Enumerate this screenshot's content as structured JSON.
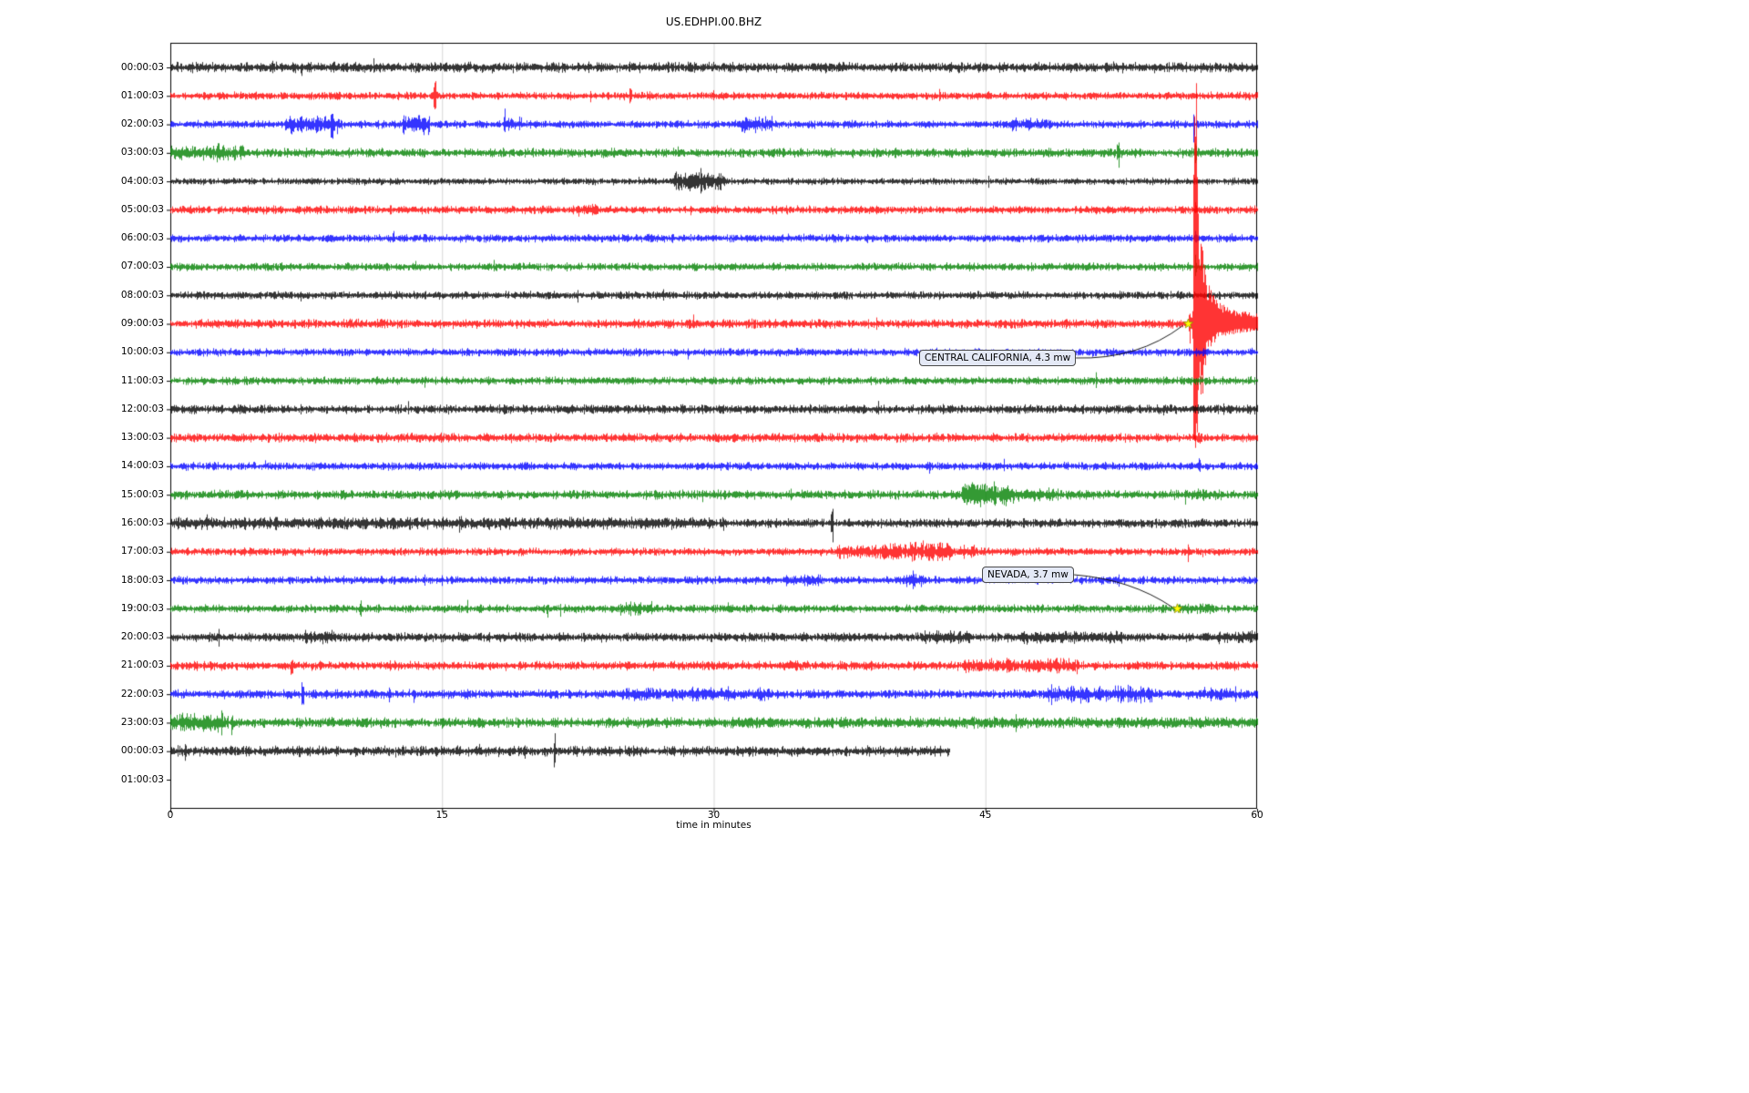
{
  "chart_data": {
    "type": "line",
    "subtype": "seismic-helicorder-dayplot",
    "title": "US.EDHPI.00.BHZ",
    "xlabel": "time in minutes",
    "xlim": [
      0,
      60
    ],
    "xticks": [
      "0",
      "15",
      "30",
      "45",
      "60"
    ],
    "xtick_values": [
      0,
      15,
      30,
      45,
      60
    ],
    "grid": "vertical-only",
    "colors": {
      "trace_cycle": [
        "#000000",
        "#ff0000",
        "#0000ff",
        "#008000"
      ],
      "grid": "#d3d3d3",
      "spine": "#000000",
      "annotation_fill": "#e4e9f6",
      "event_marker": "#ffff00",
      "event_marker_edge": "#8a8a00"
    },
    "rows": [
      {
        "label": "00:00:03",
        "color": "#000000",
        "amp": 4.5,
        "spikes": [
          [
            5.6,
            10
          ],
          [
            9.0,
            8
          ]
        ]
      },
      {
        "label": "01:00:03",
        "color": "#ff0000",
        "amp": 3.5,
        "spikes": [
          [
            14.6,
            15
          ],
          [
            25.4,
            9
          ]
        ]
      },
      {
        "label": "02:00:03",
        "color": "#0000ff",
        "amp": 3.5,
        "bursts": [
          [
            6.3,
            9.5,
            8
          ],
          [
            12.8,
            14.3,
            9
          ],
          [
            18.4,
            19.4,
            7
          ],
          [
            31.4,
            33.2,
            7
          ],
          [
            46.3,
            48.6,
            6
          ]
        ],
        "spikes": [
          [
            8.9,
            26
          ],
          [
            12.9,
            12
          ],
          [
            56.5,
            18
          ]
        ]
      },
      {
        "label": "03:00:03",
        "color": "#008000",
        "amp": 4,
        "bursts": [
          [
            0,
            4.2,
            7
          ]
        ],
        "spikes": [
          [
            2.6,
            10
          ],
          [
            52.3,
            13
          ],
          [
            56.6,
            20
          ]
        ]
      },
      {
        "label": "04:00:03",
        "color": "#000000",
        "amp": 3,
        "bursts": [
          [
            27.8,
            30.6,
            9
          ]
        ],
        "spikes": [
          [
            28.6,
            17
          ],
          [
            29.3,
            14
          ]
        ]
      },
      {
        "label": "05:00:03",
        "color": "#ff0000",
        "amp": 3.5,
        "bursts": [
          [
            22.4,
            23.6,
            6
          ]
        ],
        "spikes": [
          [
            56.6,
            9
          ]
        ]
      },
      {
        "label": "06:00:03",
        "color": "#0000ff",
        "amp": 3.5,
        "spikes": [
          [
            12.3,
            8
          ],
          [
            56.6,
            9
          ]
        ]
      },
      {
        "label": "07:00:03",
        "color": "#008000",
        "amp": 3.5,
        "spikes": [
          [
            56.6,
            11
          ]
        ]
      },
      {
        "label": "08:00:03",
        "color": "#000000",
        "amp": 3.5,
        "spikes": []
      },
      {
        "label": "09:00:03",
        "color": "#ff0000",
        "amp": 4,
        "event": {
          "t_start": 56.2,
          "t_main": 56.45,
          "peak_amp": 250
        }
      },
      {
        "label": "10:00:03",
        "color": "#0000ff",
        "amp": 3.5,
        "spikes": []
      },
      {
        "label": "11:00:03",
        "color": "#008000",
        "amp": 3.5,
        "spikes": []
      },
      {
        "label": "12:00:03",
        "color": "#000000",
        "amp": 4,
        "spikes": []
      },
      {
        "label": "13:00:03",
        "color": "#ff0000",
        "amp": 4,
        "spikes": [
          [
            56.8,
            9
          ]
        ]
      },
      {
        "label": "14:00:03",
        "color": "#0000ff",
        "amp": 3.5,
        "spikes": [
          [
            56.8,
            8
          ]
        ]
      },
      {
        "label": "15:00:03",
        "color": "#008000",
        "amp": 4,
        "bursts": [
          [
            43.7,
            46.6,
            11
          ],
          [
            46.6,
            49,
            6
          ],
          [
            56,
            58,
            5
          ]
        ],
        "spikes": [
          [
            44.2,
            16
          ],
          [
            45.0,
            14
          ]
        ]
      },
      {
        "label": "16:00:03",
        "color": "#000000",
        "amp": 4,
        "bursts": [
          [
            0,
            30,
            5.5
          ]
        ],
        "spikes": [
          [
            2.0,
            8
          ],
          [
            5.9,
            10
          ],
          [
            16.0,
            9
          ],
          [
            30.5,
            9
          ],
          [
            36.5,
            20
          ]
        ]
      },
      {
        "label": "17:00:03",
        "color": "#ff0000",
        "amp": 3.5,
        "bursts": [
          [
            36.8,
            39.5,
            7
          ],
          [
            39.5,
            43.2,
            9
          ],
          [
            43.5,
            44.6,
            6
          ]
        ],
        "spikes": [
          [
            42.0,
            13
          ],
          [
            56.2,
            11
          ]
        ]
      },
      {
        "label": "18:00:03",
        "color": "#0000ff",
        "amp": 3.5,
        "bursts": [
          [
            33.8,
            36,
            5
          ],
          [
            40.4,
            41.6,
            6
          ]
        ],
        "spikes": [
          [
            41.0,
            10
          ]
        ]
      },
      {
        "label": "19:00:03",
        "color": "#008000",
        "amp": 3.5,
        "bursts": [
          [
            24.8,
            26.6,
            6
          ],
          [
            55.6,
            57.6,
            5
          ]
        ],
        "spikes": [
          [
            10.5,
            11
          ],
          [
            20.8,
            9
          ],
          [
            25.6,
            11
          ],
          [
            30.8,
            8
          ]
        ]
      },
      {
        "label": "20:00:03",
        "color": "#000000",
        "amp": 4,
        "bursts": [
          [
            7.4,
            9.1,
            6
          ],
          [
            41.4,
            44.2,
            6
          ],
          [
            46.8,
            52.6,
            6
          ],
          [
            57.8,
            60,
            6
          ]
        ]
      },
      {
        "label": "21:00:03",
        "color": "#ff0000",
        "amp": 4,
        "bursts": [
          [
            33.8,
            35.2,
            5
          ],
          [
            43.8,
            50.2,
            7
          ]
        ],
        "spikes": [
          [
            6.7,
            9
          ]
        ]
      },
      {
        "label": "22:00:03",
        "color": "#0000ff",
        "amp": 4,
        "bursts": [
          [
            24.8,
            33.2,
            6
          ],
          [
            48.4,
            54.2,
            8
          ],
          [
            56.8,
            58.6,
            6
          ]
        ],
        "spikes": [
          [
            7.3,
            13
          ],
          [
            54.0,
            11
          ]
        ]
      },
      {
        "label": "23:00:03",
        "color": "#008000",
        "amp": 4.5,
        "bursts": [
          [
            0,
            3.2,
            9
          ],
          [
            30,
            60,
            5
          ]
        ],
        "spikes": [
          [
            2.8,
            13
          ],
          [
            3.4,
            11
          ]
        ]
      },
      {
        "label": "00:00:03",
        "color": "#000000",
        "amp": 4.5,
        "end_min": 43.0,
        "spikes": [
          [
            21.2,
            18
          ]
        ]
      },
      {
        "label": "01:00:03",
        "color": "#000000",
        "amp": 0,
        "no_data": true
      }
    ],
    "events": [
      {
        "label": "CENTRAL CALIFORNIA, 4.3 mw",
        "row": 9,
        "t_minutes": 56.2
      },
      {
        "label": "NEVADA, 3.7 mw",
        "row": 19,
        "t_minutes": 55.6
      }
    ]
  }
}
